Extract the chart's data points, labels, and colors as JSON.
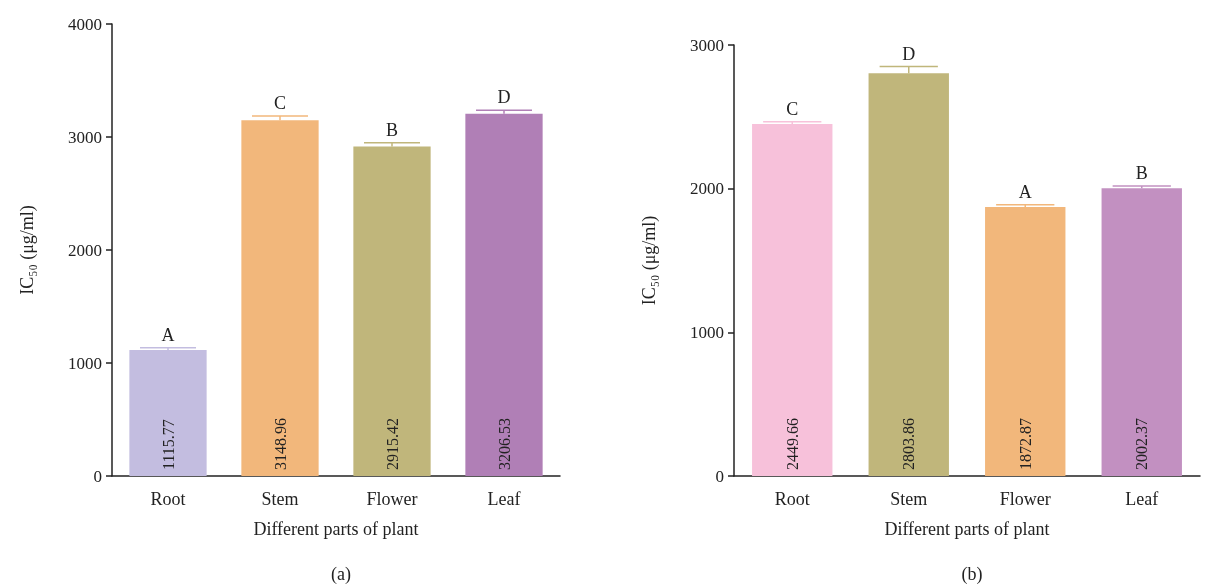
{
  "chart_data": [
    {
      "type": "bar",
      "title": "(a)",
      "xlabel": "Different parts of plant",
      "ylabel": "IC₅₀ (μg/ml)",
      "categories": [
        "Root",
        "Stem",
        "Flower",
        "Leaf"
      ],
      "values": [
        1115.77,
        3148.96,
        2915.42,
        3206.53
      ],
      "colors": [
        "#c3bde0",
        "#f2b77b",
        "#c0b67b",
        "#b07fb6"
      ],
      "value_labels": [
        "1115.77",
        "3148.96",
        "2915.42",
        "3206.53"
      ],
      "errors": [
        [
          1115.77,
          1135
        ],
        [
          3148.96,
          3185
        ],
        [
          2915.42,
          2950
        ],
        [
          3206.53,
          3237
        ]
      ],
      "annotations": [
        {
          "text": "A",
          "x": "Root",
          "y": 1135
        },
        {
          "text": "C",
          "x": "Stem",
          "y": 3185
        },
        {
          "text": "B",
          "x": "Flower",
          "y": 2950
        },
        {
          "text": "D",
          "x": "Leaf",
          "y": 3237
        }
      ],
      "ylim": [
        0,
        4000
      ],
      "yticks": [
        0,
        1000,
        2000,
        3000,
        4000
      ],
      "grid": false
    },
    {
      "type": "bar",
      "title": "(b)",
      "xlabel": "Different parts of plant",
      "ylabel": "IC₅₀ (μg/ml)",
      "categories": [
        "Root",
        "Stem",
        "Flower",
        "Leaf"
      ],
      "values": [
        2449.66,
        2803.86,
        1872.87,
        2002.37
      ],
      "colors": [
        "#f7c1da",
        "#c0b67b",
        "#f2b77b",
        "#c290c1"
      ],
      "value_labels": [
        "2449.66",
        "2803.86",
        "1872.87",
        "2002.37"
      ],
      "errors": [
        [
          2449.66,
          2465
        ],
        [
          2803.86,
          2850
        ],
        [
          1872.87,
          1888
        ],
        [
          2002.37,
          2018
        ]
      ],
      "annotations": [
        {
          "text": "C",
          "x": "Root",
          "y": 2465
        },
        {
          "text": "D",
          "x": "Stem",
          "y": 2850
        },
        {
          "text": "A",
          "x": "Flower",
          "y": 1888
        },
        {
          "text": "B",
          "x": "Leaf",
          "y": 2018
        }
      ],
      "ylim": [
        0,
        3000
      ],
      "yticks": [
        0,
        1000,
        2000,
        3000
      ],
      "grid": false
    }
  ]
}
